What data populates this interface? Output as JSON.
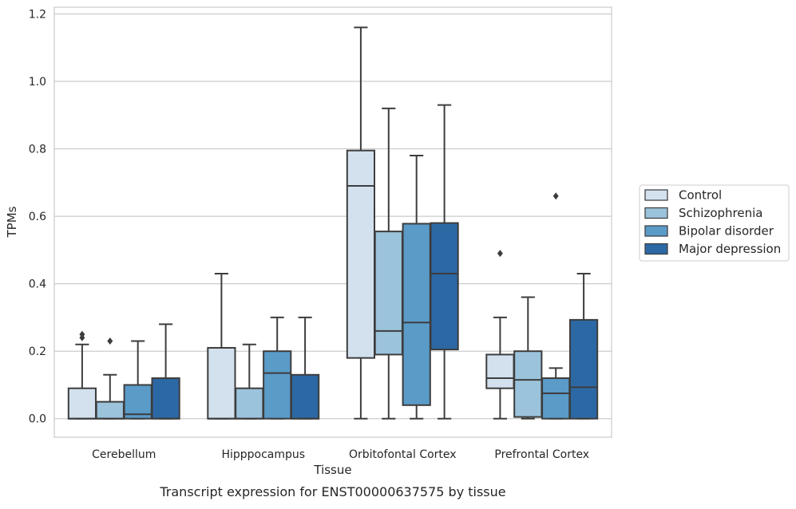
{
  "chart_data": {
    "type": "box",
    "title": "",
    "caption": "Transcript expression for ENST00000637575 by tissue",
    "xlabel": "Tissue",
    "ylabel": "TPMs",
    "ylim": [
      -0.055,
      1.22
    ],
    "yticks": [
      "0.0",
      "0.2",
      "0.4",
      "0.6",
      "0.8",
      "1.0",
      "1.2"
    ],
    "ytick_values": [
      0,
      0.2,
      0.4,
      0.6,
      0.8,
      1.0,
      1.2
    ],
    "grid": "horizontal",
    "legend_position": "right",
    "categories": [
      "Cerebellum",
      "Hipppocampus",
      "Orbitofontal Cortex",
      "Prefrontal Cortex"
    ],
    "series": [
      {
        "name": "Control",
        "color": "#d3e1ef",
        "boxes": [
          {
            "whislo": 0.0,
            "q1": 0.0,
            "med": 0.0,
            "q3": 0.09,
            "whishi": 0.22,
            "fliers": [
              0.24,
              0.25
            ]
          },
          {
            "whislo": 0.0,
            "q1": 0.0,
            "med": 0.0,
            "q3": 0.21,
            "whishi": 0.43,
            "fliers": []
          },
          {
            "whislo": 0.0,
            "q1": 0.18,
            "med": 0.69,
            "q3": 0.795,
            "whishi": 1.16,
            "fliers": []
          },
          {
            "whislo": 0.0,
            "q1": 0.09,
            "med": 0.12,
            "q3": 0.19,
            "whishi": 0.3,
            "fliers": [
              0.49
            ]
          }
        ]
      },
      {
        "name": "Schizophrenia",
        "color": "#9bc3db",
        "boxes": [
          {
            "whislo": 0.0,
            "q1": 0.0,
            "med": 0.0,
            "q3": 0.05,
            "whishi": 0.13,
            "fliers": [
              0.23
            ]
          },
          {
            "whislo": 0.0,
            "q1": 0.0,
            "med": 0.0,
            "q3": 0.09,
            "whishi": 0.22,
            "fliers": []
          },
          {
            "whislo": 0.0,
            "q1": 0.19,
            "med": 0.26,
            "q3": 0.555,
            "whishi": 0.92,
            "fliers": []
          },
          {
            "whislo": 0.0,
            "q1": 0.005,
            "med": 0.115,
            "q3": 0.2,
            "whishi": 0.36,
            "fliers": []
          }
        ]
      },
      {
        "name": "Bipolar disorder",
        "color": "#5a9bc8",
        "boxes": [
          {
            "whislo": 0.0,
            "q1": 0.0,
            "med": 0.013,
            "q3": 0.1,
            "whishi": 0.23,
            "fliers": []
          },
          {
            "whislo": 0.0,
            "q1": 0.0,
            "med": 0.135,
            "q3": 0.2,
            "whishi": 0.3,
            "fliers": []
          },
          {
            "whislo": 0.0,
            "q1": 0.04,
            "med": 0.285,
            "q3": 0.578,
            "whishi": 0.78,
            "fliers": []
          },
          {
            "whislo": 0.0,
            "q1": 0.0,
            "med": 0.075,
            "q3": 0.12,
            "whishi": 0.15,
            "fliers": [
              0.66
            ]
          }
        ]
      },
      {
        "name": "Major depression",
        "color": "#2c68a4",
        "boxes": [
          {
            "whislo": 0.0,
            "q1": 0.0,
            "med": 0.0,
            "q3": 0.12,
            "whishi": 0.28,
            "fliers": []
          },
          {
            "whislo": 0.0,
            "q1": 0.0,
            "med": 0.0,
            "q3": 0.13,
            "whishi": 0.3,
            "fliers": []
          },
          {
            "whislo": 0.0,
            "q1": 0.205,
            "med": 0.43,
            "q3": 0.58,
            "whishi": 0.93,
            "fliers": []
          },
          {
            "whislo": 0.0,
            "q1": 0.0,
            "med": 0.093,
            "q3": 0.293,
            "whishi": 0.43,
            "fliers": []
          }
        ]
      }
    ]
  }
}
